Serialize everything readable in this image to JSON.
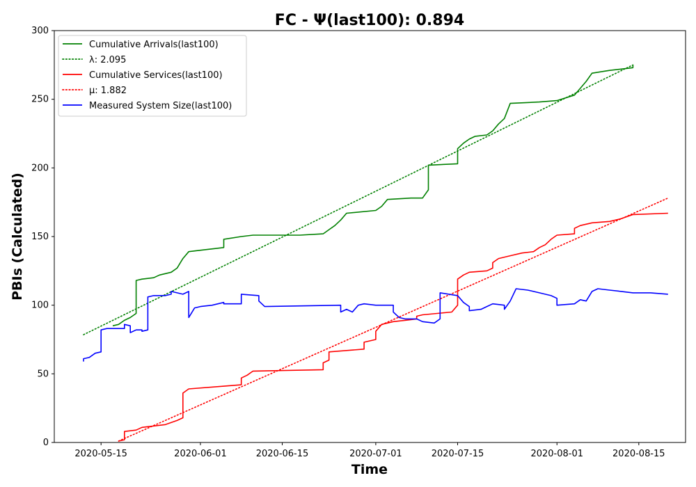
{
  "chart_data": {
    "type": "line",
    "title": "FC -  Ψ(last100): 0.894",
    "xlabel": "Time",
    "ylabel": "PBIs (Calculated)",
    "ylim": [
      0,
      300
    ],
    "yticks": [
      0,
      50,
      100,
      150,
      200,
      250,
      300
    ],
    "xlim": [
      "2020-05-07",
      "2020-08-23"
    ],
    "xticks": [
      "2020-05-15",
      "2020-06-01",
      "2020-06-15",
      "2020-07-01",
      "2020-07-15",
      "2020-08-01",
      "2020-08-15"
    ],
    "grid": false,
    "legend_position": "upper-left",
    "series": [
      {
        "name": "Cumulative Arrivals(last100)",
        "color": "#008000",
        "style": "solid",
        "points": [
          [
            "2020-05-17",
            85
          ],
          [
            "2020-05-18",
            86
          ],
          [
            "2020-05-19",
            89
          ],
          [
            "2020-05-20",
            91
          ],
          [
            "2020-05-21",
            94
          ],
          [
            "2020-05-21",
            118
          ],
          [
            "2020-05-22",
            119
          ],
          [
            "2020-05-24",
            120
          ],
          [
            "2020-05-25",
            122
          ],
          [
            "2020-05-27",
            124
          ],
          [
            "2020-05-28",
            127
          ],
          [
            "2020-05-29",
            134
          ],
          [
            "2020-05-30",
            139
          ],
          [
            "2020-06-01",
            140
          ],
          [
            "2020-06-05",
            142
          ],
          [
            "2020-06-05",
            148
          ],
          [
            "2020-06-08",
            150
          ],
          [
            "2020-06-10",
            151
          ],
          [
            "2020-06-18",
            151
          ],
          [
            "2020-06-22",
            152
          ],
          [
            "2020-06-23",
            155
          ],
          [
            "2020-06-24",
            158
          ],
          [
            "2020-06-25",
            162
          ],
          [
            "2020-06-26",
            167
          ],
          [
            "2020-07-01",
            169
          ],
          [
            "2020-07-02",
            172
          ],
          [
            "2020-07-03",
            177
          ],
          [
            "2020-07-07",
            178
          ],
          [
            "2020-07-09",
            178
          ],
          [
            "2020-07-10",
            184
          ],
          [
            "2020-07-10",
            202
          ],
          [
            "2020-07-15",
            203
          ],
          [
            "2020-07-15",
            214
          ],
          [
            "2020-07-16",
            218
          ],
          [
            "2020-07-17",
            221
          ],
          [
            "2020-07-18",
            223
          ],
          [
            "2020-07-20",
            224
          ],
          [
            "2020-07-21",
            227
          ],
          [
            "2020-07-22",
            232
          ],
          [
            "2020-07-23",
            236
          ],
          [
            "2020-07-24",
            247
          ],
          [
            "2020-07-29",
            248
          ],
          [
            "2020-08-01",
            249
          ],
          [
            "2020-08-04",
            253
          ],
          [
            "2020-08-05",
            258
          ],
          [
            "2020-08-06",
            263
          ],
          [
            "2020-08-07",
            269
          ],
          [
            "2020-08-10",
            271
          ],
          [
            "2020-08-12",
            272
          ],
          [
            "2020-08-14",
            273
          ],
          [
            "2020-08-14",
            275
          ]
        ]
      },
      {
        "name": "λ: 2.095",
        "color": "#008000",
        "style": "dotted",
        "points": [
          [
            "2020-05-12",
            78.5
          ],
          [
            "2020-08-14",
            275
          ]
        ]
      },
      {
        "name": "Cumulative Services(last100)",
        "color": "#ff0000",
        "style": "solid",
        "points": [
          [
            "2020-05-18",
            1
          ],
          [
            "2020-05-19",
            2
          ],
          [
            "2020-05-19",
            8
          ],
          [
            "2020-05-21",
            9
          ],
          [
            "2020-05-22",
            11
          ],
          [
            "2020-05-24",
            12
          ],
          [
            "2020-05-26",
            13
          ],
          [
            "2020-05-28",
            16
          ],
          [
            "2020-05-29",
            18
          ],
          [
            "2020-05-29",
            36
          ],
          [
            "2020-05-30",
            39
          ],
          [
            "2020-06-05",
            41
          ],
          [
            "2020-06-08",
            42
          ],
          [
            "2020-06-08",
            47
          ],
          [
            "2020-06-09",
            49
          ],
          [
            "2020-06-10",
            52
          ],
          [
            "2020-06-22",
            53
          ],
          [
            "2020-06-22",
            58
          ],
          [
            "2020-06-23",
            60
          ],
          [
            "2020-06-23",
            66
          ],
          [
            "2020-06-29",
            68
          ],
          [
            "2020-06-29",
            73
          ],
          [
            "2020-07-01",
            75
          ],
          [
            "2020-07-01",
            81
          ],
          [
            "2020-07-02",
            86
          ],
          [
            "2020-07-04",
            88
          ],
          [
            "2020-07-06",
            89
          ],
          [
            "2020-07-08",
            90
          ],
          [
            "2020-07-08",
            92
          ],
          [
            "2020-07-09",
            93
          ],
          [
            "2020-07-14",
            95
          ],
          [
            "2020-07-15",
            100
          ],
          [
            "2020-07-15",
            119
          ],
          [
            "2020-07-16",
            122
          ],
          [
            "2020-07-17",
            124
          ],
          [
            "2020-07-20",
            125
          ],
          [
            "2020-07-21",
            127
          ],
          [
            "2020-07-21",
            131
          ],
          [
            "2020-07-22",
            134
          ],
          [
            "2020-07-24",
            136
          ],
          [
            "2020-07-26",
            138
          ],
          [
            "2020-07-28",
            139
          ],
          [
            "2020-07-29",
            142
          ],
          [
            "2020-07-30",
            144
          ],
          [
            "2020-07-31",
            148
          ],
          [
            "2020-08-01",
            151
          ],
          [
            "2020-08-04",
            152
          ],
          [
            "2020-08-04",
            156
          ],
          [
            "2020-08-05",
            158
          ],
          [
            "2020-08-07",
            160
          ],
          [
            "2020-08-10",
            161
          ],
          [
            "2020-08-12",
            163
          ],
          [
            "2020-08-14",
            166
          ],
          [
            "2020-08-20",
            167
          ]
        ]
      },
      {
        "name": "μ: 1.882",
        "color": "#ff0000",
        "style": "dotted",
        "points": [
          [
            "2020-05-18",
            1
          ],
          [
            "2020-08-20",
            178
          ]
        ]
      },
      {
        "name": "Measured System Size(last100)",
        "color": "#0000ff",
        "style": "solid",
        "points": [
          [
            "2020-05-12",
            59
          ],
          [
            "2020-05-12",
            61
          ],
          [
            "2020-05-13",
            62
          ],
          [
            "2020-05-14",
            65
          ],
          [
            "2020-05-15",
            66
          ],
          [
            "2020-05-15",
            82
          ],
          [
            "2020-05-16",
            83
          ],
          [
            "2020-05-19",
            83
          ],
          [
            "2020-05-19",
            86
          ],
          [
            "2020-05-20",
            85
          ],
          [
            "2020-05-20",
            80
          ],
          [
            "2020-05-21",
            82
          ],
          [
            "2020-05-22",
            82
          ],
          [
            "2020-05-22",
            81
          ],
          [
            "2020-05-23",
            82
          ],
          [
            "2020-05-23",
            106
          ],
          [
            "2020-05-24",
            107
          ],
          [
            "2020-05-25",
            107
          ],
          [
            "2020-05-26",
            107
          ],
          [
            "2020-05-27",
            108
          ],
          [
            "2020-05-27",
            110
          ],
          [
            "2020-05-28",
            109
          ],
          [
            "2020-05-29",
            108
          ],
          [
            "2020-05-30",
            110
          ],
          [
            "2020-05-30",
            91
          ],
          [
            "2020-05-31",
            98
          ],
          [
            "2020-06-01",
            99
          ],
          [
            "2020-06-03",
            100
          ],
          [
            "2020-06-04",
            101
          ],
          [
            "2020-06-05",
            102
          ],
          [
            "2020-06-05",
            101
          ],
          [
            "2020-06-08",
            101
          ],
          [
            "2020-06-08",
            108
          ],
          [
            "2020-06-11",
            107
          ],
          [
            "2020-06-11",
            103
          ],
          [
            "2020-06-12",
            99
          ],
          [
            "2020-06-25",
            100
          ],
          [
            "2020-06-25",
            95
          ],
          [
            "2020-06-26",
            97
          ],
          [
            "2020-06-27",
            95
          ],
          [
            "2020-06-28",
            100
          ],
          [
            "2020-06-29",
            101
          ],
          [
            "2020-07-01",
            100
          ],
          [
            "2020-07-04",
            100
          ],
          [
            "2020-07-04",
            95
          ],
          [
            "2020-07-05",
            91
          ],
          [
            "2020-07-06",
            90
          ],
          [
            "2020-07-08",
            90
          ],
          [
            "2020-07-09",
            88
          ],
          [
            "2020-07-11",
            87
          ],
          [
            "2020-07-12",
            90
          ],
          [
            "2020-07-12",
            109
          ],
          [
            "2020-07-15",
            107
          ],
          [
            "2020-07-16",
            102
          ],
          [
            "2020-07-17",
            99
          ],
          [
            "2020-07-17",
            96
          ],
          [
            "2020-07-19",
            97
          ],
          [
            "2020-07-20",
            99
          ],
          [
            "2020-07-21",
            101
          ],
          [
            "2020-07-23",
            100
          ],
          [
            "2020-07-23",
            97
          ],
          [
            "2020-07-24",
            103
          ],
          [
            "2020-07-25",
            112
          ],
          [
            "2020-07-27",
            111
          ],
          [
            "2020-07-29",
            109
          ],
          [
            "2020-07-31",
            107
          ],
          [
            "2020-08-01",
            105
          ],
          [
            "2020-08-01",
            100
          ],
          [
            "2020-08-04",
            101
          ],
          [
            "2020-08-05",
            104
          ],
          [
            "2020-08-06",
            103
          ],
          [
            "2020-08-07",
            110
          ],
          [
            "2020-08-08",
            112
          ],
          [
            "2020-08-10",
            111
          ],
          [
            "2020-08-12",
            110
          ],
          [
            "2020-08-14",
            109
          ],
          [
            "2020-08-17",
            109
          ],
          [
            "2020-08-20",
            108
          ]
        ]
      }
    ]
  }
}
